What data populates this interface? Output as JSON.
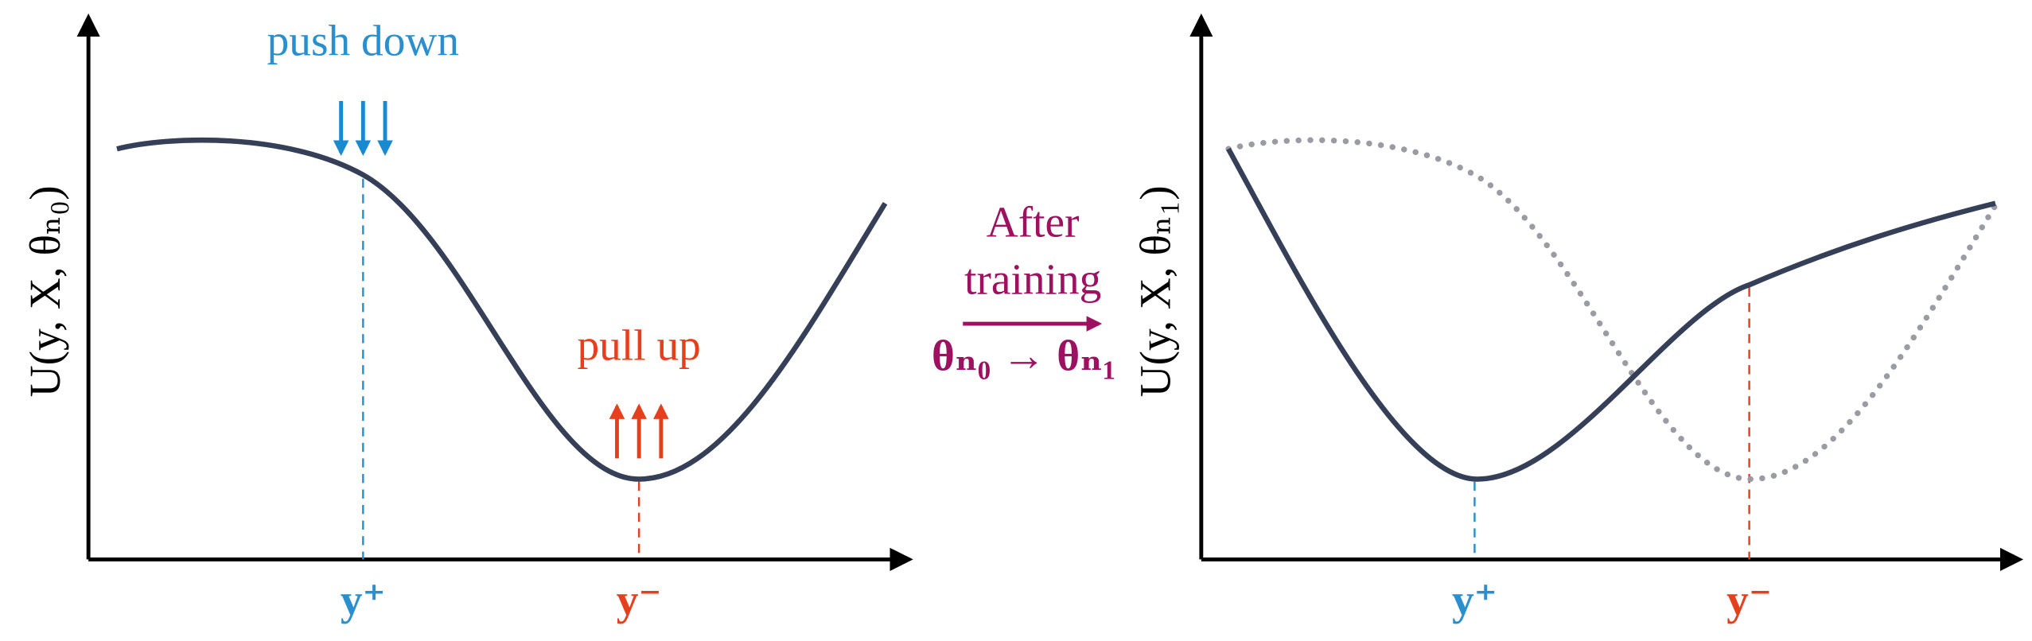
{
  "left_panel": {
    "y_label": "U(y, X, θₙ₀)",
    "push_label": "push down",
    "pull_label": "pull up",
    "x_labels": [
      "y⁺",
      "y⁻"
    ]
  },
  "transition": {
    "lines": [
      "After",
      "training"
    ],
    "formula": "θₙ₀ → θₙ₁"
  },
  "right_panel": {
    "y_label": "U(y, X, θₙ₁)",
    "x_labels": [
      "y⁺",
      "y⁻"
    ]
  }
}
